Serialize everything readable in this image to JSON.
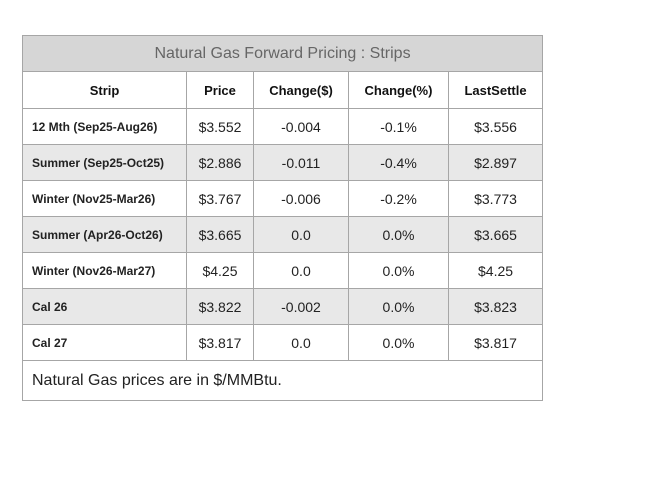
{
  "table": {
    "title": "Natural Gas Forward Pricing : Strips",
    "columns": [
      "Strip",
      "Price",
      "Change($)",
      "Change(%)",
      "LastSettle"
    ],
    "rows": [
      {
        "strip": "12 Mth (Sep25-Aug26)",
        "price": "$3.552",
        "change_usd": "-0.004",
        "change_pct": "-0.1%",
        "last_settle": "$3.556"
      },
      {
        "strip": "Summer (Sep25-Oct25)",
        "price": "$2.886",
        "change_usd": "-0.011",
        "change_pct": "-0.4%",
        "last_settle": "$2.897"
      },
      {
        "strip": "Winter (Nov25-Mar26)",
        "price": "$3.767",
        "change_usd": "-0.006",
        "change_pct": "-0.2%",
        "last_settle": "$3.773"
      },
      {
        "strip": "Summer (Apr26-Oct26)",
        "price": "$3.665",
        "change_usd": "0.0",
        "change_pct": "0.0%",
        "last_settle": "$3.665"
      },
      {
        "strip": "Winter (Nov26-Mar27)",
        "price": "$4.25",
        "change_usd": "0.0",
        "change_pct": "0.0%",
        "last_settle": "$4.25"
      },
      {
        "strip": "Cal 26",
        "price": "$3.822",
        "change_usd": "-0.002",
        "change_pct": "0.0%",
        "last_settle": "$3.823"
      },
      {
        "strip": "Cal 27",
        "price": "$3.817",
        "change_usd": "0.0",
        "change_pct": "0.0%",
        "last_settle": "$3.817"
      }
    ],
    "footer": "Natural Gas prices are in $/MMBtu."
  }
}
